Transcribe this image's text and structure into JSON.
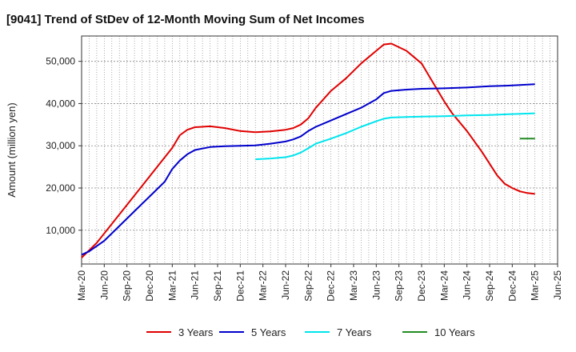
{
  "title": "[9041]  Trend of StDev of 12-Month Moving Sum of Net Incomes",
  "colors": {
    "grid": "#888888",
    "axis": "#333333",
    "series": [
      "#e00000",
      "#0000cc",
      "#00e5ee",
      "#228b22"
    ]
  },
  "chart_data": {
    "type": "line",
    "title": "[9041]  Trend of StDev of 12-Month Moving Sum of Net Incomes",
    "xlabel": "",
    "ylabel": "Amount (million yen)",
    "ylim": [
      2000,
      56000
    ],
    "yticks": [
      10000,
      20000,
      30000,
      40000,
      50000
    ],
    "ytick_labels": [
      "10,000",
      "20,000",
      "30,000",
      "40,000",
      "50,000"
    ],
    "xlim": [
      "2020-03",
      "2025-06"
    ],
    "xticks": [
      "2020-03",
      "2020-06",
      "2020-09",
      "2020-12",
      "2021-03",
      "2021-06",
      "2021-09",
      "2021-12",
      "2022-03",
      "2022-06",
      "2022-09",
      "2022-12",
      "2023-03",
      "2023-06",
      "2023-09",
      "2023-12",
      "2024-03",
      "2024-06",
      "2024-09",
      "2024-12",
      "2025-03",
      "2025-06"
    ],
    "xtick_labels": [
      "Mar-20",
      "Jun-20",
      "Sep-20",
      "Dec-20",
      "Mar-21",
      "Jun-21",
      "Sep-21",
      "Dec-21",
      "Mar-22",
      "Jun-22",
      "Sep-22",
      "Dec-22",
      "Mar-23",
      "Jun-23",
      "Sep-23",
      "Dec-23",
      "Mar-24",
      "Jun-24",
      "Sep-24",
      "Dec-24",
      "Mar-25",
      "Jun-25"
    ],
    "grid": true,
    "legend_position": "bottom",
    "series": [
      {
        "name": "3 Years",
        "x": [
          "2020-03",
          "2020-05",
          "2020-07",
          "2020-09",
          "2020-11",
          "2021-01",
          "2021-03",
          "2021-04",
          "2021-05",
          "2021-06",
          "2021-08",
          "2021-10",
          "2021-12",
          "2022-02",
          "2022-04",
          "2022-06",
          "2022-07",
          "2022-08",
          "2022-09",
          "2022-10",
          "2022-12",
          "2023-02",
          "2023-04",
          "2023-06",
          "2023-07",
          "2023-08",
          "2023-10",
          "2023-12",
          "2024-01",
          "2024-02",
          "2024-03",
          "2024-04",
          "2024-06",
          "2024-08",
          "2024-10",
          "2024-11",
          "2024-12",
          "2025-01",
          "2025-02",
          "2025-03"
        ],
        "values": [
          3500,
          7000,
          11500,
          16000,
          20500,
          25000,
          29500,
          32500,
          33800,
          34400,
          34600,
          34200,
          33500,
          33200,
          33400,
          33800,
          34200,
          35000,
          36500,
          39000,
          43000,
          46000,
          49500,
          52500,
          54000,
          54200,
          52500,
          49500,
          46500,
          43500,
          40500,
          37800,
          33500,
          28500,
          23000,
          21000,
          20000,
          19200,
          18800,
          18600
        ]
      },
      {
        "name": "5 Years",
        "x": [
          "2020-03",
          "2020-04",
          "2020-06",
          "2020-08",
          "2020-10",
          "2020-12",
          "2021-02",
          "2021-03",
          "2021-04",
          "2021-05",
          "2021-06",
          "2021-08",
          "2021-10",
          "2021-12",
          "2022-02",
          "2022-04",
          "2022-06",
          "2022-07",
          "2022-08",
          "2022-09",
          "2022-10",
          "2022-12",
          "2023-02",
          "2023-04",
          "2023-06",
          "2023-07",
          "2023-08",
          "2023-10",
          "2023-12",
          "2024-03",
          "2024-06",
          "2024-09",
          "2024-12",
          "2025-03"
        ],
        "values": [
          4200,
          5000,
          7500,
          11000,
          14500,
          18000,
          21500,
          24500,
          26500,
          28000,
          29000,
          29700,
          29900,
          30000,
          30100,
          30500,
          31000,
          31500,
          32200,
          33500,
          34500,
          36000,
          37500,
          39000,
          41000,
          42500,
          43000,
          43300,
          43500,
          43600,
          43800,
          44100,
          44300,
          44600
        ]
      },
      {
        "name": "7 Years",
        "x": [
          "2022-02",
          "2022-04",
          "2022-06",
          "2022-07",
          "2022-08",
          "2022-09",
          "2022-10",
          "2022-12",
          "2023-02",
          "2023-04",
          "2023-06",
          "2023-07",
          "2023-08",
          "2023-10",
          "2023-12",
          "2024-03",
          "2024-06",
          "2024-09",
          "2024-12",
          "2025-03"
        ],
        "values": [
          26800,
          27000,
          27300,
          27700,
          28400,
          29400,
          30500,
          31700,
          33000,
          34500,
          35800,
          36400,
          36700,
          36800,
          36900,
          37000,
          37200,
          37300,
          37500,
          37700
        ]
      },
      {
        "name": "10 Years",
        "x": [
          "2025-01",
          "2025-03"
        ],
        "values": [
          31700,
          31700
        ]
      }
    ]
  }
}
